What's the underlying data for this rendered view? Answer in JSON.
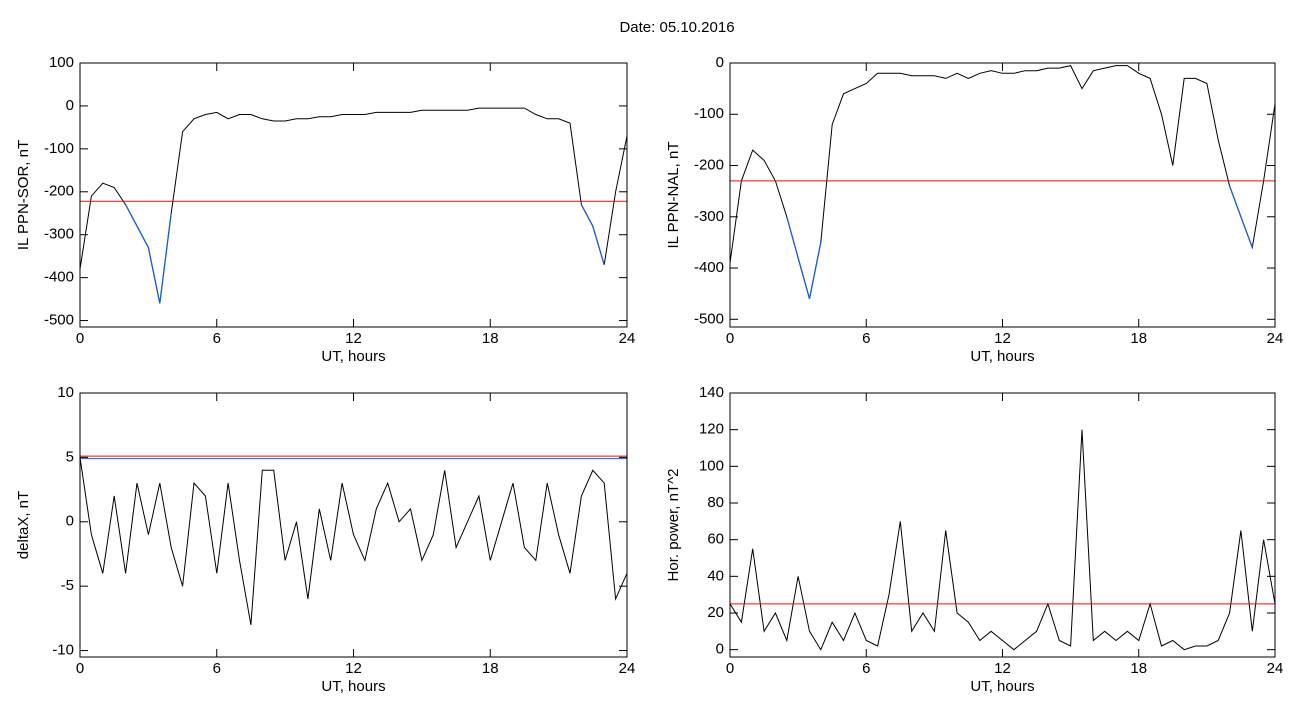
{
  "title": "Date:  05.10.2016",
  "chart_data": [
    {
      "type": "line",
      "xlabel": "UT, hours",
      "ylabel": "IL PPN-SOR, nT",
      "xlim": [
        0,
        24
      ],
      "xticks": [
        0,
        6,
        12,
        18,
        24
      ],
      "ylim": [
        -515,
        100
      ],
      "yticks": [
        -500,
        -400,
        -300,
        -200,
        -100,
        0,
        100
      ],
      "x": [
        0,
        0.5,
        1,
        1.5,
        2,
        2.5,
        3,
        3.5,
        4,
        4.5,
        5,
        5.5,
        6,
        6.5,
        7,
        7.5,
        8,
        8.5,
        9,
        9.5,
        10,
        10.5,
        11,
        11.5,
        12,
        12.5,
        13,
        13.5,
        14,
        14.5,
        15,
        15.5,
        16,
        16.5,
        17,
        17.5,
        18,
        18.5,
        19,
        19.5,
        20,
        20.5,
        21,
        21.5,
        22,
        22.5,
        23,
        23.5,
        24
      ],
      "values": [
        -380,
        -210,
        -180,
        -190,
        -230,
        -280,
        -330,
        -460,
        -250,
        -60,
        -30,
        -20,
        -15,
        -30,
        -20,
        -20,
        -30,
        -35,
        -35,
        -30,
        -30,
        -25,
        -25,
        -20,
        -20,
        -20,
        -15,
        -15,
        -15,
        -15,
        -10,
        -10,
        -10,
        -10,
        -10,
        -5,
        -5,
        -5,
        -5,
        -5,
        -20,
        -30,
        -30,
        -40,
        -230,
        -280,
        -370,
        -200,
        -70
      ],
      "color": "#000000",
      "below_color": "#1f5fd0",
      "threshold": -222,
      "threshold_color": "#e01010"
    },
    {
      "type": "line",
      "xlabel": "UT, hours",
      "ylabel": "IL PPN-NAL, nT",
      "xlim": [
        0,
        24
      ],
      "xticks": [
        0,
        6,
        12,
        18,
        24
      ],
      "ylim": [
        -515,
        0
      ],
      "yticks": [
        -500,
        -400,
        -300,
        -200,
        -100,
        0
      ],
      "x": [
        0,
        0.5,
        1,
        1.5,
        2,
        2.5,
        3,
        3.5,
        4,
        4.5,
        5,
        5.5,
        6,
        6.5,
        7,
        7.5,
        8,
        8.5,
        9,
        9.5,
        10,
        10.5,
        11,
        11.5,
        12,
        12.5,
        13,
        13.5,
        14,
        14.5,
        15,
        15.5,
        16,
        16.5,
        17,
        17.5,
        18,
        18.5,
        19,
        19.5,
        20,
        20.5,
        21,
        21.5,
        22,
        22.5,
        23,
        23.5,
        24
      ],
      "values": [
        -390,
        -230,
        -170,
        -190,
        -230,
        -300,
        -380,
        -460,
        -350,
        -120,
        -60,
        -50,
        -40,
        -20,
        -20,
        -20,
        -25,
        -25,
        -25,
        -30,
        -20,
        -30,
        -20,
        -15,
        -20,
        -20,
        -15,
        -15,
        -10,
        -10,
        -5,
        -50,
        -15,
        -10,
        -5,
        -5,
        -20,
        -30,
        -100,
        -200,
        -30,
        -30,
        -40,
        -150,
        -240,
        -300,
        -360,
        -230,
        -80
      ],
      "color": "#000000",
      "below_color": "#1f5fd0",
      "threshold": -230,
      "threshold_color": "#e01010"
    },
    {
      "type": "line",
      "xlabel": "UT, hours",
      "ylabel": "deltaX, nT",
      "xlim": [
        0,
        24
      ],
      "xticks": [
        0,
        6,
        12,
        18,
        24
      ],
      "ylim": [
        -10.5,
        10
      ],
      "yticks": [
        -10,
        -5,
        0,
        5,
        10
      ],
      "x": [
        0,
        0.5,
        1,
        1.5,
        2,
        2.5,
        3,
        3.5,
        4,
        4.5,
        5,
        5.5,
        6,
        6.5,
        7,
        7.5,
        8,
        8.5,
        9,
        9.5,
        10,
        10.5,
        11,
        11.5,
        12,
        12.5,
        13,
        13.5,
        14,
        14.5,
        15,
        15.5,
        16,
        16.5,
        17,
        17.5,
        18,
        18.5,
        19,
        19.5,
        20,
        20.5,
        21,
        21.5,
        22,
        22.5,
        23,
        23.5,
        24
      ],
      "values": [
        5,
        -1,
        -4,
        2,
        -4,
        3,
        -1,
        3,
        -2,
        -5,
        3,
        2,
        -4,
        3,
        -3,
        -8,
        4,
        4,
        -3,
        0,
        -6,
        1,
        -3,
        3,
        -1,
        -3,
        1,
        3,
        0,
        1,
        -3,
        -1,
        4,
        -2,
        0,
        2,
        -3,
        0,
        3,
        -2,
        -3,
        3,
        -1,
        -4,
        2,
        4,
        3,
        -6,
        -4
      ],
      "color": "#000000",
      "threshold": 5.1,
      "threshold_color": "#e01010",
      "threshold2": 4.9,
      "threshold2_color": "#1f5fd0"
    },
    {
      "type": "line",
      "xlabel": "UT, hours",
      "ylabel": "Hor. power, nT^2",
      "xlim": [
        0,
        24
      ],
      "xticks": [
        0,
        6,
        12,
        18,
        24
      ],
      "ylim": [
        -4,
        140
      ],
      "yticks": [
        0,
        20,
        40,
        60,
        80,
        100,
        120,
        140
      ],
      "x": [
        0,
        0.5,
        1,
        1.5,
        2,
        2.5,
        3,
        3.5,
        4,
        4.5,
        5,
        5.5,
        6,
        6.5,
        7,
        7.5,
        8,
        8.5,
        9,
        9.5,
        10,
        10.5,
        11,
        11.5,
        12,
        12.5,
        13,
        13.5,
        14,
        14.5,
        15,
        15.5,
        16,
        16.5,
        17,
        17.5,
        18,
        18.5,
        19,
        19.5,
        20,
        20.5,
        21,
        21.5,
        22,
        22.5,
        23,
        23.5,
        24
      ],
      "values": [
        25,
        15,
        55,
        10,
        20,
        5,
        40,
        10,
        0,
        15,
        5,
        20,
        5,
        2,
        30,
        70,
        10,
        20,
        10,
        65,
        20,
        15,
        5,
        10,
        5,
        0,
        5,
        10,
        25,
        5,
        2,
        120,
        5,
        10,
        5,
        10,
        5,
        25,
        2,
        5,
        0,
        2,
        2,
        5,
        20,
        65,
        10,
        60,
        25
      ],
      "color": "#000000",
      "threshold": 25,
      "threshold_color": "#e01010"
    }
  ]
}
